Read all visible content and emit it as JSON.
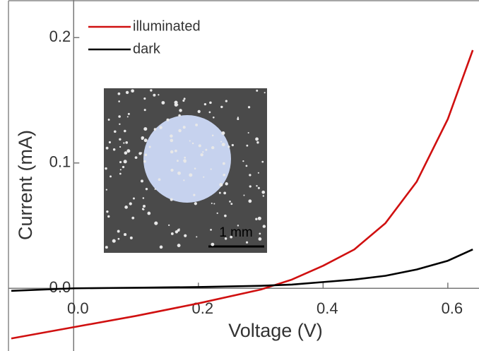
{
  "chart_data": {
    "type": "line",
    "x_label": "Voltage (V)",
    "y_label": "Current (mA)",
    "x": [
      -0.1,
      0.0,
      0.1,
      0.2,
      0.3,
      0.35,
      0.4,
      0.45,
      0.5,
      0.55,
      0.6,
      0.64
    ],
    "series": [
      {
        "name": "illuminated",
        "color": "#d01010",
        "values": [
          -0.04,
          -0.031,
          -0.022,
          -0.012,
          -0.001,
          0.007,
          0.018,
          0.031,
          0.052,
          0.085,
          0.135,
          0.19
        ]
      },
      {
        "name": "dark",
        "color": "#000000",
        "values": [
          -0.002,
          0.0,
          0.0005,
          0.001,
          0.002,
          0.003,
          0.005,
          0.007,
          0.01,
          0.015,
          0.022,
          0.031
        ]
      }
    ],
    "xlim": [
      -0.1,
      0.65
    ],
    "ylim": [
      -0.05,
      0.23
    ],
    "xticks": [
      {
        "value": 0,
        "label": "0.0"
      },
      0.2,
      0.4,
      0.6
    ],
    "yticks": [
      {
        "value": 0,
        "label": "0.0"
      },
      0.1,
      0.2
    ],
    "legend": "top-left",
    "inset_scale_label": "1 mm"
  }
}
